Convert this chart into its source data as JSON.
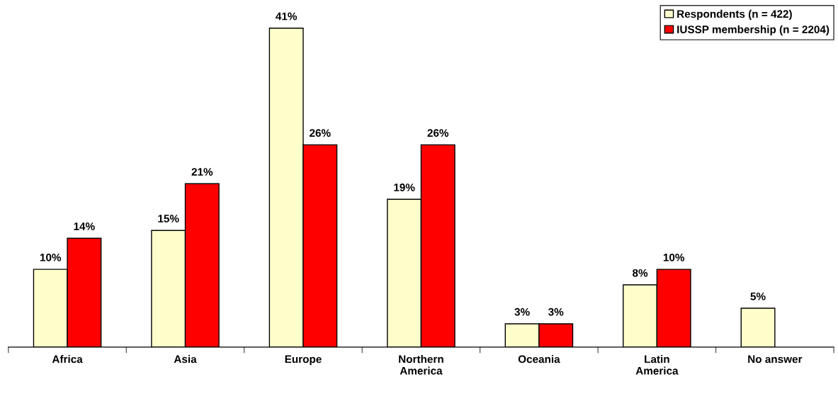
{
  "chart_data": {
    "type": "bar",
    "categories": [
      "Africa",
      "Asia",
      "Europe",
      "Northern\nAmerica",
      "Oceania",
      "Latin\nAmerica",
      "No answer"
    ],
    "series": [
      {
        "name": "Respondents (n = 422)",
        "color": "#ffffcc",
        "values": [
          10,
          15,
          41,
          19,
          3,
          8,
          5
        ],
        "value_labels": [
          "10%",
          "15%",
          "41%",
          "19%",
          "3%",
          "8%",
          "5%"
        ]
      },
      {
        "name": "IUSSP membership (n = 2204)",
        "color": "#ff0000",
        "values": [
          14,
          21,
          26,
          26,
          3,
          10,
          null
        ],
        "value_labels": [
          "14%",
          "21%",
          "26%",
          "26%",
          "3%",
          "10%",
          null
        ]
      }
    ],
    "grid": false,
    "legend": "top right"
  }
}
